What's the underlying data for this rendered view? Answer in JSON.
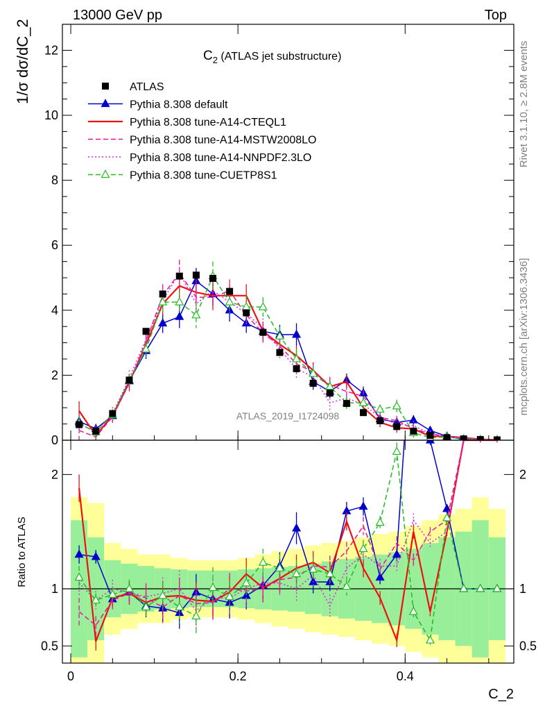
{
  "header": {
    "left": "13000 GeV pp",
    "right": "Top"
  },
  "side_labels": {
    "rivet": "Rivet 3.1.10, ≥ 2.8M events",
    "mcplots": "mcplots.cern.ch [arXiv:1306.3436]"
  },
  "chart_data": {
    "type": "line",
    "title": "C",
    "title_sub": "2",
    "title_suffix": " (ATLAS jet substructure)",
    "xlabel": "C_2",
    "ylabel_main": "1/σ dσ/dC_2",
    "ylabel_ratio": "Ratio to ATLAS",
    "analysis_label": "ATLAS_2019_I1724098",
    "xlim": [
      -0.01,
      0.53
    ],
    "ylim_main": [
      0,
      12.8
    ],
    "ylim_ratio": [
      0.35,
      2.3
    ],
    "x_ticks": [
      0,
      0.2,
      0.4
    ],
    "x_tick_labels": [
      "0",
      "0.2",
      "0.4"
    ],
    "y_ticks_main": [
      0,
      2,
      4,
      6,
      8,
      10,
      12
    ],
    "y_tick_labels_main": [
      "0",
      "2",
      "4",
      "6",
      "8",
      "10",
      "12"
    ],
    "y_ticks_ratio": [
      0.5,
      1,
      2
    ],
    "y_tick_labels_ratio": [
      "0.5",
      "1",
      "2"
    ],
    "x": [
      0.01,
      0.03,
      0.05,
      0.07,
      0.09,
      0.11,
      0.13,
      0.15,
      0.17,
      0.19,
      0.21,
      0.23,
      0.25,
      0.27,
      0.29,
      0.31,
      0.33,
      0.35,
      0.37,
      0.39,
      0.41,
      0.43,
      0.45,
      0.47,
      0.49,
      0.51
    ],
    "data": {
      "name": "ATLAS",
      "color": "#000000",
      "values": [
        0.48,
        0.28,
        0.82,
        1.85,
        3.35,
        4.5,
        5.05,
        5.08,
        4.98,
        4.58,
        3.92,
        3.32,
        2.7,
        2.2,
        1.75,
        1.45,
        1.13,
        0.85,
        0.6,
        0.42,
        0.28,
        0.15,
        0.08,
        0.04,
        0.02,
        0.01
      ]
    },
    "band_total": [
      0.8,
      0.75,
      0.4,
      0.35,
      0.3,
      0.3,
      0.27,
      0.25,
      0.25,
      0.25,
      0.27,
      0.3,
      0.33,
      0.35,
      0.38,
      0.4,
      0.42,
      0.45,
      0.48,
      0.5,
      0.55,
      0.6,
      0.65,
      0.7,
      0.8,
      0.7
    ],
    "band_stat": [
      0.6,
      0.45,
      0.25,
      0.22,
      0.2,
      0.18,
      0.17,
      0.16,
      0.16,
      0.16,
      0.17,
      0.18,
      0.19,
      0.2,
      0.22,
      0.24,
      0.26,
      0.28,
      0.3,
      0.32,
      0.35,
      0.4,
      0.45,
      0.5,
      0.6,
      0.45
    ],
    "series": [
      {
        "name": "Pythia 8.308 default",
        "color": "#0000cc",
        "style": "solid",
        "marker": "triangle-filled",
        "values": [
          0.58,
          0.35,
          0.75,
          1.82,
          2.75,
          3.6,
          3.8,
          4.9,
          4.5,
          4.0,
          3.6,
          3.35,
          3.25,
          3.25,
          1.8,
          1.5,
          1.85,
          1.45,
          0.65,
          0.55,
          0.62,
          0.3,
          0.12,
          0.02,
          0.01,
          0.005
        ],
        "ratio": [
          1.3,
          1.28,
          0.91,
          0.97,
          0.85,
          0.83,
          0.79,
          0.97,
          0.91,
          0.88,
          0.94,
          1.03,
          1.2,
          1.53,
          1.06,
          1.06,
          1.68,
          1.72,
          1.1,
          1.3,
          3.5,
          2.3,
          1.7,
          1.0,
          1.0,
          1.0
        ],
        "errors": [
          0.2,
          0.15,
          0.15,
          0.2,
          0.25,
          0.3,
          0.35,
          0.4,
          0.35,
          0.35,
          0.3,
          0.3,
          0.3,
          0.35,
          0.25,
          0.2,
          0.2,
          0.2,
          0.15,
          0.15,
          0.15,
          0.1,
          0.1,
          0.05,
          0.05,
          0.05
        ]
      },
      {
        "name": "Pythia 8.308 tune-A14-CTEQL1",
        "color": "#ee1111",
        "style": "solid",
        "marker": "none",
        "values": [
          0.9,
          0.15,
          0.75,
          1.78,
          2.95,
          4.2,
          4.75,
          4.55,
          4.45,
          4.45,
          4.45,
          3.35,
          2.95,
          2.6,
          2.15,
          1.65,
          1.8,
          1.0,
          0.55,
          0.38,
          0.35,
          0.12,
          0.12,
          0.08,
          0.03,
          0.01
        ],
        "ratio": [
          1.88,
          0.54,
          0.92,
          0.96,
          0.88,
          0.93,
          0.94,
          0.9,
          0.89,
          0.97,
          1.13,
          1.01,
          1.09,
          1.18,
          1.23,
          1.14,
          1.59,
          1.18,
          0.92,
          0.55,
          1.5,
          0.8,
          1.5,
          2.3,
          2.3,
          2.3
        ],
        "errors": [
          0.3,
          0.2,
          0.2,
          0.25,
          0.3,
          0.35,
          0.4,
          0.4,
          0.4,
          0.35,
          0.35,
          0.3,
          0.3,
          0.3,
          0.25,
          0.25,
          0.2,
          0.2,
          0.15,
          0.15,
          0.15,
          0.1,
          0.1,
          0.05,
          0.05,
          0.05
        ]
      },
      {
        "name": "Pythia 8.308 tune-A14-MSTW2008LO",
        "color": "#ee1199",
        "style": "dashed",
        "marker": "none",
        "values": [
          0.3,
          0.1,
          0.72,
          1.75,
          3.05,
          4.45,
          5.15,
          4.4,
          4.4,
          4.6,
          3.85,
          3.3,
          2.9,
          2.35,
          2.1,
          1.7,
          1.5,
          1.35,
          0.7,
          0.6,
          0.35,
          0.2,
          0.12,
          0.08,
          0.03,
          0.01
        ],
        "ratio": [
          0.8,
          0.68,
          0.9,
          0.96,
          0.92,
          0.84,
          0.94,
          0.87,
          0.88,
          1.0,
          0.98,
          1.0,
          1.08,
          1.1,
          1.2,
          1.19,
          1.33,
          1.55,
          1.17,
          1.4,
          1.25,
          1.5,
          1.6,
          2.3,
          2.3,
          2.3
        ],
        "errors": [
          0.3,
          0.2,
          0.2,
          0.25,
          0.3,
          0.35,
          0.4,
          0.4,
          0.4,
          0.35,
          0.35,
          0.3,
          0.3,
          0.3,
          0.25,
          0.25,
          0.2,
          0.2,
          0.15,
          0.15,
          0.15,
          0.1,
          0.1,
          0.05,
          0.05,
          0.05
        ]
      },
      {
        "name": "Pythia 8.308 tune-A14-NNPDF2.3LO",
        "color": "#dd22dd",
        "style": "dotted",
        "marker": "none",
        "values": [
          0.5,
          0.25,
          0.82,
          1.9,
          3.1,
          4.3,
          5.15,
          4.2,
          4.6,
          4.25,
          3.9,
          3.45,
          2.8,
          2.2,
          1.95,
          1.15,
          1.3,
          1.1,
          0.7,
          0.5,
          0.45,
          0.2,
          0.12,
          0.06,
          0.02,
          0.01
        ],
        "ratio": [
          1.05,
          0.9,
          1.0,
          0.97,
          0.93,
          0.96,
          1.0,
          0.81,
          0.92,
          0.92,
          1.0,
          1.05,
          1.05,
          1.0,
          1.12,
          0.85,
          1.18,
          1.3,
          1.2,
          1.2,
          1.6,
          1.4,
          1.5,
          2.3,
          2.3,
          2.3
        ],
        "errors": [
          0.3,
          0.2,
          0.2,
          0.25,
          0.3,
          0.35,
          0.4,
          0.4,
          0.4,
          0.35,
          0.35,
          0.3,
          0.3,
          0.3,
          0.25,
          0.25,
          0.2,
          0.2,
          0.15,
          0.15,
          0.15,
          0.1,
          0.1,
          0.05,
          0.05,
          0.05
        ]
      },
      {
        "name": "Pythia 8.308 tune-CUETP8S1",
        "color": "#22bb22",
        "style": "dashed",
        "marker": "triangle-open",
        "values": [
          0.52,
          0.25,
          0.78,
          1.85,
          2.8,
          4.25,
          4.25,
          3.85,
          5.05,
          4.25,
          4.1,
          4.1,
          3.2,
          2.5,
          2.05,
          1.65,
          1.15,
          1.15,
          0.95,
          1.05,
          0.23,
          0.08,
          0.1,
          0.04,
          0.02,
          0.01
        ],
        "ratio": [
          1.1,
          0.9,
          0.95,
          1.0,
          0.84,
          0.94,
          0.84,
          0.76,
          1.01,
          0.93,
          1.05,
          1.23,
          1.18,
          1.13,
          1.17,
          1.13,
          1.02,
          1.35,
          1.58,
          2.2,
          0.8,
          0.55,
          1.62,
          1.0,
          1.0,
          1.0
        ],
        "errors": [
          0.25,
          0.15,
          0.15,
          0.2,
          0.25,
          0.3,
          0.35,
          0.4,
          0.45,
          0.35,
          0.35,
          0.3,
          0.3,
          0.3,
          0.25,
          0.2,
          0.2,
          0.2,
          0.15,
          0.2,
          0.15,
          0.1,
          0.1,
          0.05,
          0.05,
          0.05
        ]
      }
    ],
    "legend": {
      "placement": "top-left",
      "entries": [
        {
          "name": "ATLAS",
          "color": "#000000",
          "style": "none",
          "marker": "square"
        },
        {
          "name": "Pythia 8.308 default",
          "color": "#0000cc",
          "style": "solid",
          "marker": "triangle-filled"
        },
        {
          "name": "Pythia 8.308 tune-A14-CTEQL1",
          "color": "#ee1111",
          "style": "solid",
          "marker": "none"
        },
        {
          "name": "Pythia 8.308 tune-A14-MSTW2008LO",
          "color": "#ee1199",
          "style": "dashed",
          "marker": "none"
        },
        {
          "name": "Pythia 8.308 tune-A14-NNPDF2.3LO",
          "color": "#dd22dd",
          "style": "dotted",
          "marker": "none"
        },
        {
          "name": "Pythia 8.308 tune-CUETP8S1",
          "color": "#22bb22",
          "style": "dashed",
          "marker": "triangle-open"
        }
      ]
    },
    "colors": {
      "band_total": "#ffff99",
      "band_stat": "#99ee99"
    }
  }
}
